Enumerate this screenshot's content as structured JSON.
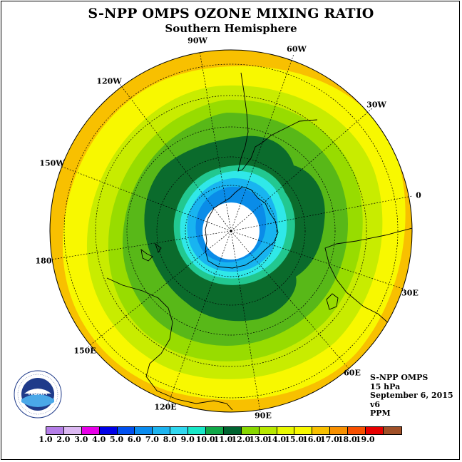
{
  "title": "S-NPP OMPS OZONE MIXING RATIO",
  "subtitle": "Southern Hemisphere",
  "longitude_labels": [
    {
      "id": "90w",
      "text": "90W"
    },
    {
      "id": "60w",
      "text": "60W"
    },
    {
      "id": "30w",
      "text": "30W"
    },
    {
      "id": "0",
      "text": "0"
    },
    {
      "id": "30e",
      "text": "30E"
    },
    {
      "id": "60e",
      "text": "60E"
    },
    {
      "id": "90e",
      "text": "90E"
    },
    {
      "id": "120e",
      "text": "120E"
    },
    {
      "id": "150e",
      "text": "150E"
    },
    {
      "id": "180",
      "text": "180"
    },
    {
      "id": "150w",
      "text": "150W"
    },
    {
      "id": "120w",
      "text": "120W"
    }
  ],
  "info": {
    "instrument": "S-NPP OMPS",
    "level": "15 hPa",
    "date": "September 6, 2015",
    "version": "v6",
    "units": "PPM"
  },
  "logo": {
    "text": "NOAA",
    "ring_text": "NATIONAL OCEANIC AND ATMOSPHERIC ADMINISTRATION · U.S. DEPARTMENT OF COMMERCE"
  },
  "colorbar": {
    "labels": [
      "1.0",
      "2.0",
      "3.0",
      "4.0",
      "5.0",
      "6.0",
      "7.0",
      "8.0",
      "9.0",
      "10.0",
      "11.0",
      "12.0",
      "13.0",
      "14.0",
      "15.0",
      "16.0",
      "17.0",
      "18.0",
      "19.0"
    ],
    "colors": [
      "#b57ee8",
      "#dcb8f2",
      "#e800e8",
      "#0000e8",
      "#0050f0",
      "#0a8cf0",
      "#1cb4f0",
      "#30d8f0",
      "#18e8c8",
      "#10a848",
      "#006430",
      "#88d800",
      "#b8e800",
      "#e8f800",
      "#f8f800",
      "#f8c000",
      "#f89000",
      "#f85000",
      "#e80000",
      "#a05028"
    ]
  },
  "ozone_bands": [
    {
      "level": "14.0-15.0",
      "color": "#f8c000"
    },
    {
      "level": "13.0-14.0",
      "color": "#f8f800"
    },
    {
      "level": "12.0-13.0",
      "color": "#c8ec00"
    },
    {
      "level": "11.0-12.0",
      "color": "#98dc00"
    },
    {
      "level": "10.0-11.0",
      "color": "#58b818"
    },
    {
      "level": "9.0-10.0",
      "color": "#0b6b2c"
    },
    {
      "level": "8.0-9.0",
      "color": "#22c890"
    },
    {
      "level": "7.0-8.0",
      "color": "#30e8e8"
    },
    {
      "level": "6.0-7.0",
      "color": "#18b4f0"
    },
    {
      "level": "5.0-6.0",
      "color": "#0a8ce8"
    },
    {
      "level": "no data",
      "color": "#ffffff"
    }
  ]
}
